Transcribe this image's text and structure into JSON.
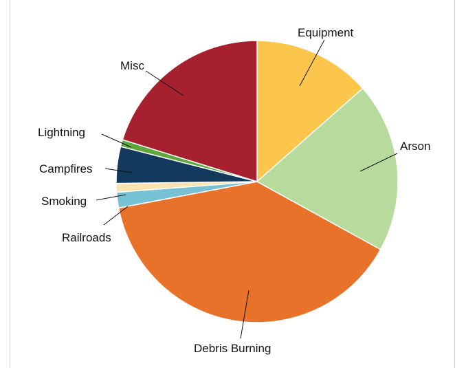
{
  "chart_data": {
    "type": "pie",
    "title": "",
    "slices": [
      {
        "label": "Equipment",
        "value": 13.5,
        "color": "#FCC64C"
      },
      {
        "label": "Arson",
        "value": 19.5,
        "color": "#B7DB9D"
      },
      {
        "label": "Debris Burning",
        "value": 39.0,
        "color": "#E8722A"
      },
      {
        "label": "Railroads",
        "value": 1.8,
        "color": "#77C1D4"
      },
      {
        "label": "Smoking",
        "value": 1.0,
        "color": "#FBE3B0"
      },
      {
        "label": "Campfires",
        "value": 4.2,
        "color": "#133A5C"
      },
      {
        "label": "Lightning",
        "value": 0.8,
        "color": "#5FA83B"
      },
      {
        "label": "Misc",
        "value": 20.2,
        "color": "#A7202F"
      }
    ],
    "start_angle_deg": 0,
    "direction": "clockwise",
    "slice_border_color": "#FFFFFF",
    "label_placement": "outside with leader lines"
  }
}
